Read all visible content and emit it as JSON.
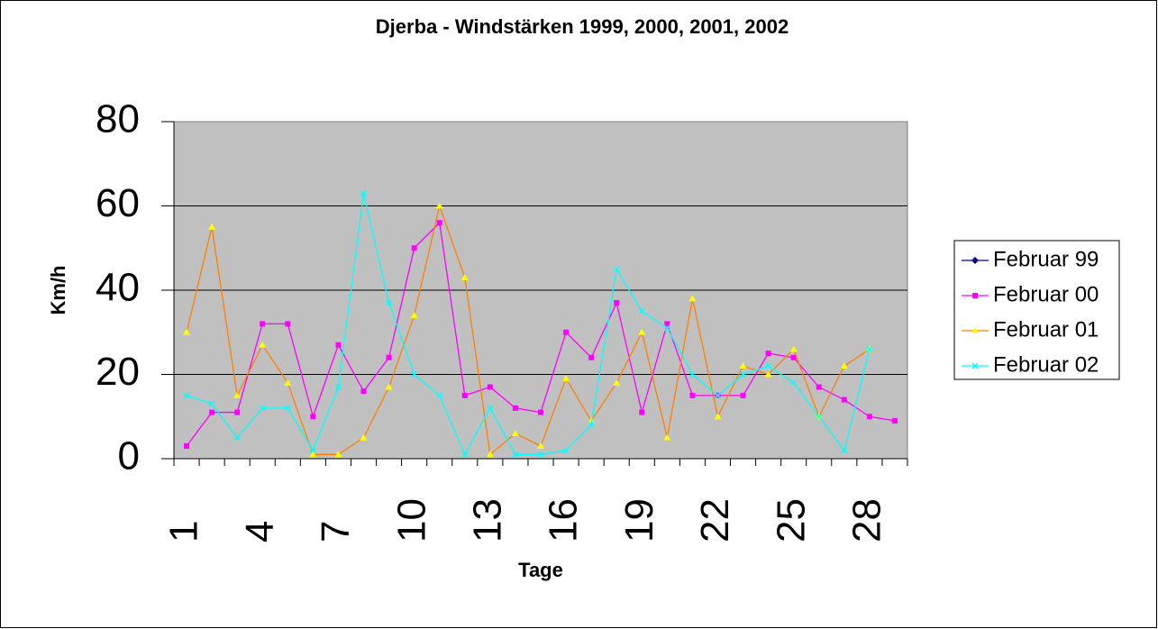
{
  "chart_data": {
    "type": "line",
    "title": "Djerba - Windstärken 1999, 2000, 2001, 2002",
    "x_label": "Tage",
    "y_label": "Km/h",
    "categories": [
      1,
      null,
      null,
      4,
      null,
      null,
      7,
      null,
      null,
      10,
      null,
      null,
      13,
      null,
      null,
      16,
      null,
      null,
      19,
      null,
      null,
      22,
      null,
      null,
      25,
      null,
      null,
      28,
      null
    ],
    "series": [
      {
        "name": "Februar 99",
        "color": "#000080",
        "marker_color": "#000080",
        "marker": "diamond",
        "values": [
          null,
          null,
          null,
          null,
          null,
          null,
          null,
          null,
          null,
          null,
          null,
          null,
          null,
          null,
          null,
          null,
          null,
          null,
          null,
          null,
          null,
          null,
          null,
          null,
          null,
          null,
          null,
          null,
          null
        ]
      },
      {
        "name": "Februar 00",
        "color": "#ff00ff",
        "marker_color": "#ff00ff",
        "marker": "square",
        "values": [
          3,
          11,
          11,
          32,
          32,
          10,
          27,
          16,
          24,
          50,
          56,
          15,
          17,
          12,
          11,
          30,
          24,
          37,
          11,
          32,
          15,
          15,
          15,
          25,
          24,
          17,
          14,
          10,
          9
        ]
      },
      {
        "name": "Februar 01",
        "color": "#ff8000",
        "marker_color": "#ffff00",
        "marker": "triangle",
        "values": [
          30,
          55,
          15,
          27,
          18,
          1,
          1,
          5,
          17,
          34,
          60,
          43,
          1,
          6,
          3,
          19,
          9,
          18,
          30,
          5,
          38,
          10,
          22,
          20,
          26,
          10,
          22,
          26,
          null
        ]
      },
      {
        "name": "Februar 02",
        "color": "#00ffff",
        "marker_color": "#00ffff",
        "marker": "x",
        "values": [
          15,
          13,
          5,
          12,
          12,
          2,
          17,
          63,
          37,
          20,
          15,
          1,
          12,
          1,
          1,
          2,
          8,
          45,
          35,
          31,
          20,
          15,
          20,
          22,
          18,
          10,
          2,
          26,
          null
        ]
      }
    ],
    "ylim": [
      0,
      80
    ],
    "yticks": [
      0,
      20,
      40,
      60,
      80
    ],
    "grid": true,
    "legend": "right"
  }
}
